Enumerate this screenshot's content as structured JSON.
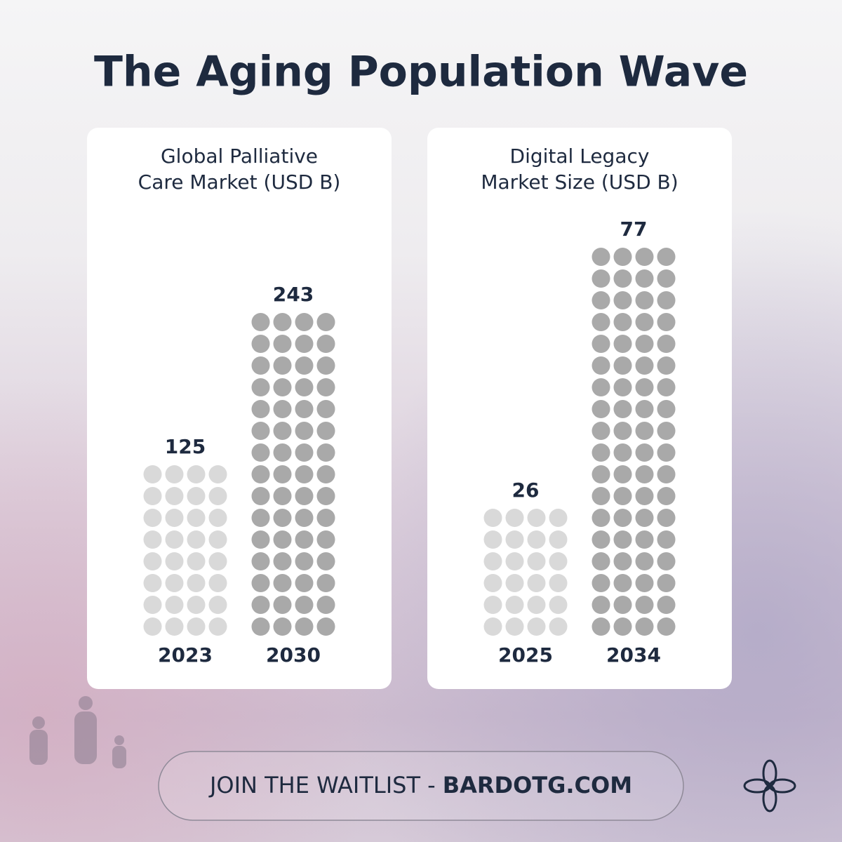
{
  "title": "The Aging Population Wave",
  "chart_data": [
    {
      "type": "pictogram",
      "title": [
        "Global Palliative",
        "Care Market (USD B)"
      ],
      "categories": [
        "2023",
        "2030"
      ],
      "values": [
        125,
        243
      ],
      "colors": [
        "#d9d9d9",
        "#a9a9a9"
      ]
    },
    {
      "type": "pictogram",
      "title": [
        "Digital Legacy",
        "Market Size (USD B)"
      ],
      "categories": [
        "2025",
        "2034"
      ],
      "values": [
        26,
        77
      ],
      "colors": [
        "#d9d9d9",
        "#a9a9a9"
      ]
    }
  ],
  "cta": {
    "text": "JOIN THE WAITLIST -",
    "link": "BARDOTG.COM"
  }
}
